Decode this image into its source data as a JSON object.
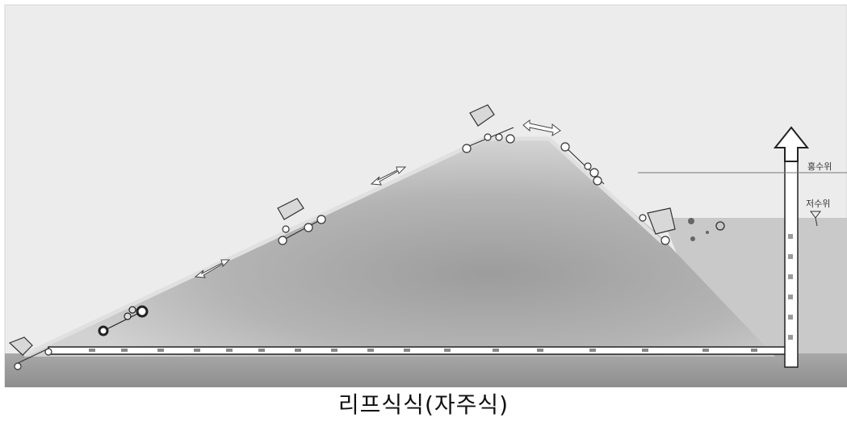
{
  "diagram": {
    "labels": {
      "flood_level": "홍수위",
      "low_level": "저수위"
    }
  },
  "caption": "리프식식(자주식)"
}
